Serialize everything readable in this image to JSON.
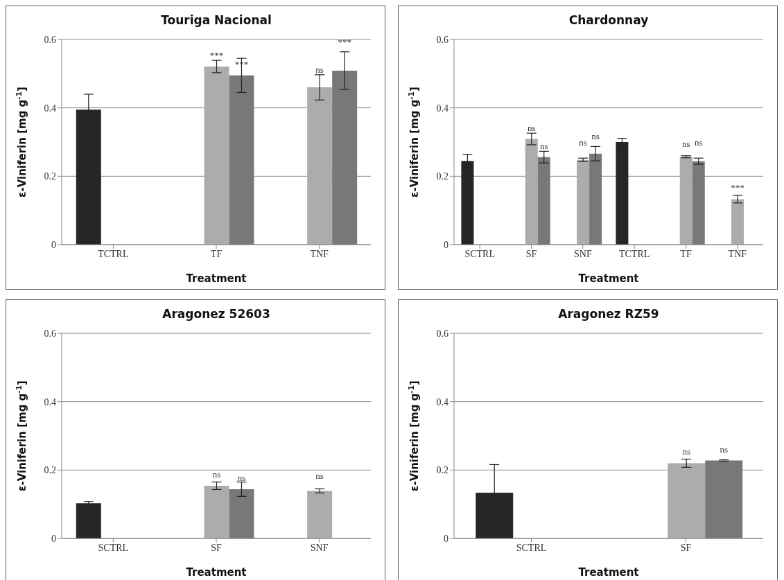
{
  "chart_data": [
    {
      "type": "bar",
      "title": "Touriga Nacional",
      "xlabel": "Treatment",
      "ylabel": "ε-Viniferin [mg g$^{-1}$]",
      "categories": [
        "TCTRL",
        "TF",
        "TNF"
      ],
      "ylim": [
        0,
        0.6
      ],
      "yticks": [
        0,
        0.2,
        0.4,
        0.6
      ],
      "grid": "y",
      "series": [
        {
          "color": "#262626",
          "values": [
            0.395,
            null,
            null
          ],
          "errors": [
            0.045,
            null,
            null
          ]
        },
        {
          "color": "#aaacae",
          "values": [
            null,
            0.521,
            0.46
          ],
          "errors": [
            null,
            0.018,
            0.037
          ],
          "value_labels": [
            null,
            "***",
            "ns"
          ]
        },
        {
          "color": "#77787a",
          "values": [
            null,
            0.495,
            0.509
          ],
          "errors": [
            null,
            0.05,
            0.055
          ],
          "value_labels": [
            null,
            "***",
            "***"
          ]
        }
      ]
    },
    {
      "type": "bar",
      "title": "Chardonnay",
      "xlabel": "Treatment",
      "ylabel": "ε-Viniferin [mg g$^{-1}$]",
      "categories": [
        "SCTRL",
        "SF",
        "SNF",
        "TCTRL",
        "TF",
        "TNF"
      ],
      "ylim": [
        0,
        0.6
      ],
      "yticks": [
        0,
        0.2,
        0.4,
        0.6
      ],
      "grid": "y",
      "series": [
        {
          "color": "#262626",
          "values": [
            0.245,
            null,
            null,
            0.3,
            null,
            null
          ],
          "errors": [
            0.019,
            null,
            null,
            0.011,
            null,
            null
          ]
        },
        {
          "color": "#aaacae",
          "values": [
            null,
            0.309,
            0.248,
            null,
            0.257,
            0.133
          ],
          "errors": [
            null,
            0.017,
            0.005,
            null,
            0.003,
            0.011
          ],
          "value_labels": [
            null,
            "ns",
            "ns",
            null,
            "ns",
            "***"
          ]
        },
        {
          "color": "#77787a",
          "values": [
            null,
            0.256,
            0.266,
            null,
            0.244,
            null
          ],
          "errors": [
            null,
            0.017,
            0.021,
            null,
            0.009,
            null
          ],
          "value_labels": [
            null,
            "ns",
            "ns",
            null,
            "ns",
            null
          ]
        }
      ]
    },
    {
      "type": "bar",
      "title": "Aragonez 52603",
      "xlabel": "Treatment",
      "ylabel": "ε-Viniferin [mg g$^{-1}$]",
      "categories": [
        "SCTRL",
        "SF",
        "SNF"
      ],
      "ylim": [
        0,
        0.6
      ],
      "yticks": [
        0,
        0.2,
        0.4,
        0.6
      ],
      "grid": "y",
      "series": [
        {
          "color": "#262626",
          "values": [
            0.103,
            null,
            null
          ],
          "errors": [
            0.005,
            null,
            null
          ]
        },
        {
          "color": "#aaacae",
          "values": [
            null,
            0.154,
            0.139
          ],
          "errors": [
            null,
            0.011,
            0.006
          ],
          "value_labels": [
            null,
            "ns",
            "ns"
          ]
        },
        {
          "color": "#77787a",
          "values": [
            null,
            0.144,
            null
          ],
          "errors": [
            null,
            0.021,
            null
          ],
          "value_labels": [
            null,
            "ns",
            null
          ]
        }
      ]
    },
    {
      "type": "bar",
      "title": "Aragonez RZ59",
      "xlabel": "Treatment",
      "ylabel": "ε-Viniferin [mg g$^{-1}$]",
      "categories": [
        "SCTRL",
        "SF"
      ],
      "ylim": [
        0,
        0.6
      ],
      "yticks": [
        0,
        0.2,
        0.4,
        0.6
      ],
      "grid": "y",
      "series": [
        {
          "color": "#262626",
          "values": [
            0.134,
            null
          ],
          "errors": [
            0.082,
            null
          ]
        },
        {
          "color": "#aaacae",
          "values": [
            null,
            0.22
          ],
          "errors": [
            null,
            0.012
          ],
          "value_labels": [
            null,
            "ns"
          ]
        },
        {
          "color": "#77787a",
          "values": [
            null,
            0.228
          ],
          "errors": [
            null,
            0.002
          ],
          "value_labels": [
            null,
            "ns"
          ]
        }
      ]
    }
  ]
}
